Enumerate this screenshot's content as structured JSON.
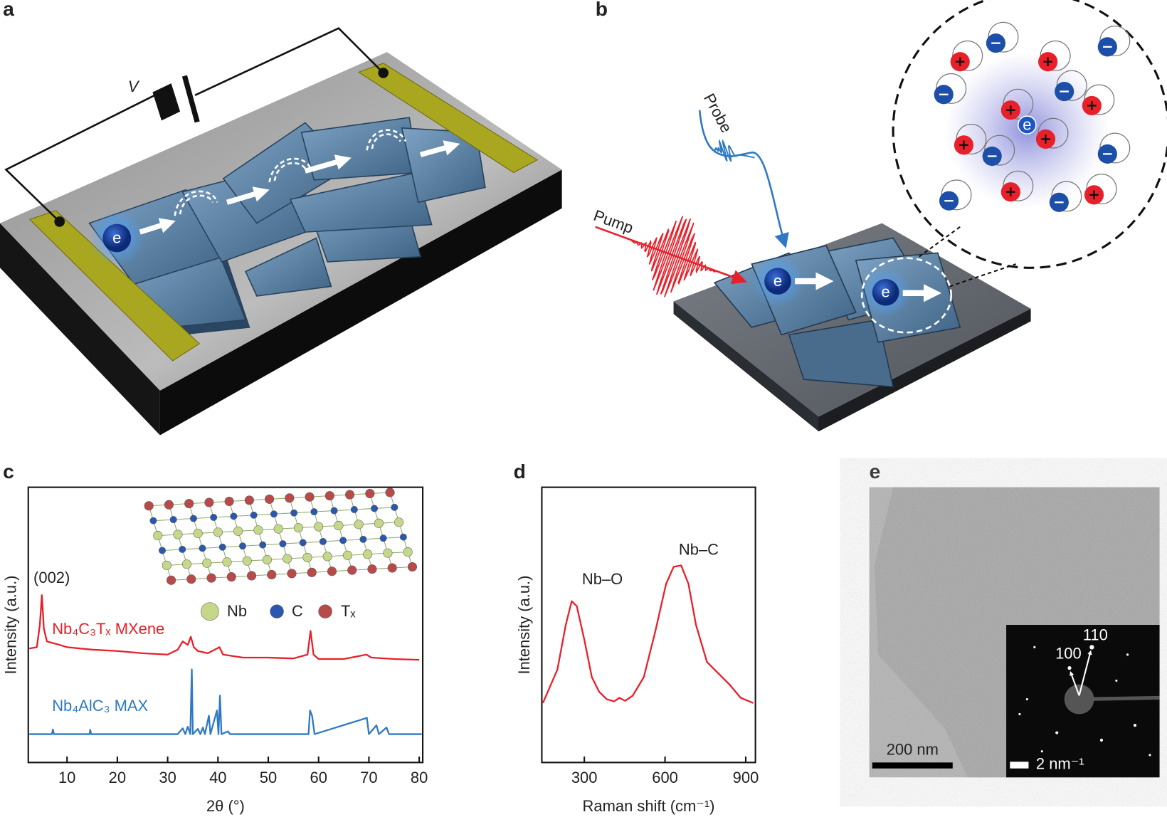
{
  "panels": [
    "a",
    "b",
    "c",
    "d",
    "e"
  ],
  "diagram_a": {
    "voltage": "V",
    "electron": "e"
  },
  "diagram_b": {
    "pump": "Pump",
    "probe": "Probe",
    "electron": "e"
  },
  "tem_e": {
    "scale_bar": "200 nm",
    "inset_scale": "2 nm⁻¹",
    "spots": [
      "100",
      "110"
    ]
  },
  "chart_data": [
    {
      "type": "line",
      "xlabel": "2θ (°)",
      "ylabel": "Intensity (a.u.)",
      "xlim": [
        2.3,
        80.7
      ],
      "ylim": [
        0,
        100
      ],
      "xticks": [
        10,
        20,
        30,
        40,
        50,
        60,
        70,
        80
      ],
      "annotations": [
        "(002)"
      ],
      "inset_legend": [
        "Nb",
        "C",
        "Tₓ"
      ],
      "series": [
        {
          "name": "Nb₄C₃Tₓ MXene",
          "color": "#e8202a",
          "x": [
            2.5,
            4.0,
            4.6,
            5.0,
            5.4,
            6.0,
            8,
            10,
            15,
            20,
            25,
            30,
            32,
            33,
            34,
            34.6,
            35.2,
            36,
            38,
            40.3,
            41,
            45,
            50,
            55,
            57.8,
            58.4,
            59,
            60,
            65,
            69.5,
            70.5,
            75,
            80
          ],
          "values": [
            41.4,
            41.9,
            50,
            60.8,
            48.6,
            44,
            43,
            41.9,
            41,
            40.5,
            39.7,
            39.2,
            41,
            44,
            42.7,
            45.7,
            41.9,
            40.5,
            39.7,
            41.9,
            39.2,
            38.1,
            38.1,
            37.8,
            39.2,
            47.8,
            39.2,
            37.6,
            37.6,
            39.2,
            38.1,
            37.6,
            37.3
          ]
        },
        {
          "name": "Nb₄AlC₃ MAX",
          "color": "#2f79c2",
          "x": [
            2.5,
            7,
            7.2,
            7.4,
            14.5,
            14.6,
            14.8,
            32,
            33,
            33.5,
            34,
            34.5,
            34.8,
            35.0,
            36,
            36.5,
            37,
            37.4,
            38.2,
            38.5,
            39.8,
            40.1,
            40.4,
            40.7,
            42,
            42.4,
            58.0,
            58.3,
            58.7,
            59.2,
            69.6,
            70,
            71.5,
            72,
            73.5,
            74,
            80.5
          ],
          "values": [
            10.3,
            10.3,
            12,
            10.3,
            10.3,
            11.9,
            10.3,
            10.3,
            12.4,
            10.3,
            13,
            10.3,
            33.8,
            10.3,
            12.2,
            10.3,
            12.7,
            10.3,
            17,
            10.3,
            18.9,
            10.3,
            24.3,
            10.3,
            11.3,
            10.3,
            10.3,
            18.9,
            17,
            10.3,
            16.2,
            10.3,
            13.5,
            10.3,
            12.7,
            10.3,
            10.3
          ]
        }
      ]
    },
    {
      "type": "line",
      "xlabel": "Raman shift (cm⁻¹)",
      "ylabel": "Intensity (a.u.)",
      "xlim": [
        142,
        936
      ],
      "ylim": [
        0,
        100
      ],
      "xticks": [
        300,
        600,
        900
      ],
      "annotations": [
        "Nb–O",
        "Nb–C"
      ],
      "series": [
        {
          "color": "#e8202a",
          "x": [
            146,
            200,
            231,
            253,
            272,
            300,
            328,
            355,
            383,
            411,
            430,
            452,
            480,
            521,
            563,
            604,
            632,
            660,
            687,
            715,
            756,
            798,
            839,
            881,
            928
          ],
          "values": [
            21.6,
            33.8,
            50,
            58.6,
            56.8,
            44.6,
            31,
            25.7,
            23,
            22.2,
            23.5,
            22.4,
            24.3,
            31,
            47.3,
            64.9,
            71.1,
            71.6,
            64.9,
            50,
            36.5,
            32.4,
            28.4,
            23.5,
            21.6
          ]
        }
      ]
    }
  ]
}
